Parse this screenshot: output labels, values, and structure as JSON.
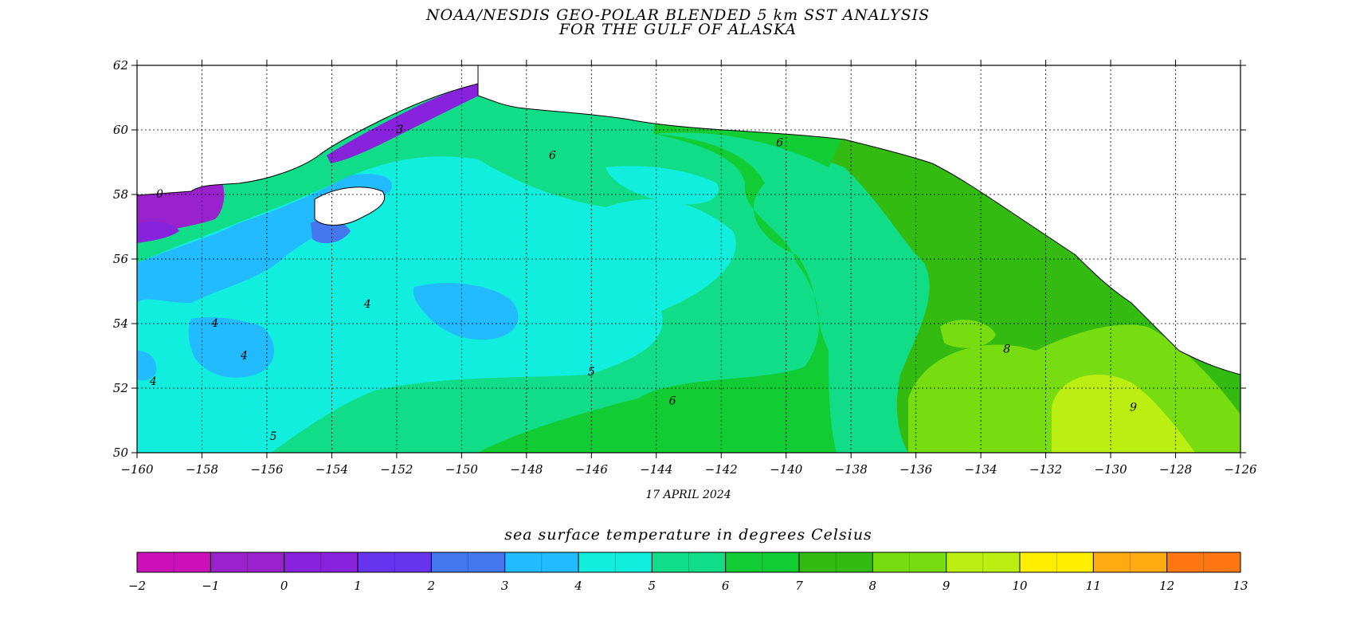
{
  "title": {
    "line1": "NOAA/NESDIS GEO-POLAR BLENDED 5 km SST ANALYSIS",
    "line2": "FOR THE GULF OF ALASKA"
  },
  "date_label": "17 APRIL 2024",
  "colorbar": {
    "title": "sea surface temperature in degrees Celsius",
    "ticks": [
      "-2",
      "-1",
      "0",
      "1",
      "2",
      "3",
      "4",
      "5",
      "6",
      "7",
      "8",
      "9",
      "10",
      "11",
      "12",
      "13"
    ],
    "colors": [
      "#cc11bb",
      "#9922cc",
      "#8822dd",
      "#6633ee",
      "#4477ee",
      "#22bbff",
      "#11eedd",
      "#11dd88",
      "#11cc33",
      "#33bb11",
      "#77dd11",
      "#bbee11",
      "#ffee00",
      "#ffaa11",
      "#ff7711"
    ]
  },
  "map": {
    "lon_ticks": [
      "-160",
      "-158",
      "-156",
      "-154",
      "-152",
      "-150",
      "-148",
      "-146",
      "-144",
      "-142",
      "-140",
      "-138",
      "-136",
      "-134",
      "-132",
      "-130",
      "-128",
      "-126"
    ],
    "lat_ticks": [
      "50",
      "52",
      "54",
      "56",
      "58",
      "60",
      "62"
    ],
    "lon_range": [
      -160,
      -126
    ],
    "lat_range": [
      50,
      62
    ],
    "grid": true,
    "land_color": "#ffffff",
    "contour_labels": [
      {
        "text": "3",
        "lon": -151.9,
        "lat": 59.9
      },
      {
        "text": "0",
        "lon": -159.3,
        "lat": 57.9
      },
      {
        "text": "6",
        "lon": -147.2,
        "lat": 59.1
      },
      {
        "text": "6",
        "lon": -140.2,
        "lat": 59.5
      },
      {
        "text": "4",
        "lon": -152.9,
        "lat": 54.5
      },
      {
        "text": "4",
        "lon": -157.6,
        "lat": 53.9
      },
      {
        "text": "4",
        "lon": -156.7,
        "lat": 52.9
      },
      {
        "text": "4",
        "lon": -159.5,
        "lat": 52.1
      },
      {
        "text": "5",
        "lon": -146.0,
        "lat": 52.4
      },
      {
        "text": "6",
        "lon": -143.5,
        "lat": 51.5
      },
      {
        "text": "5",
        "lon": -155.8,
        "lat": 50.4
      },
      {
        "text": "8",
        "lon": -133.2,
        "lat": 53.1
      },
      {
        "text": "9",
        "lon": -129.3,
        "lat": 51.3
      }
    ]
  }
}
